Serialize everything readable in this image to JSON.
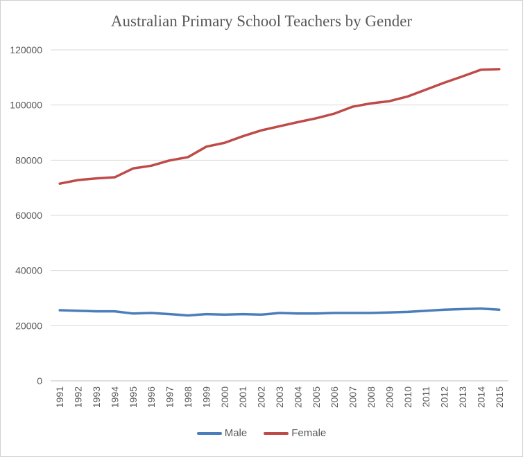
{
  "chart_data": {
    "type": "line",
    "title": "Australian Primary School Teachers by Gender",
    "xlabel": "",
    "ylabel": "",
    "ylim": [
      0,
      120000
    ],
    "yticks": [
      "0",
      "20000",
      "40000",
      "60000",
      "80000",
      "100000",
      "120000"
    ],
    "x": [
      "1991",
      "1992",
      "1993",
      "1994",
      "1995",
      "1996",
      "1997",
      "1998",
      "1999",
      "2000",
      "2001",
      "2002",
      "2003",
      "2004",
      "2005",
      "2006",
      "2007",
      "2008",
      "2009",
      "2010",
      "2011",
      "2012",
      "2013",
      "2014",
      "2015"
    ],
    "grid": true,
    "legend_position": "bottom",
    "series": [
      {
        "name": "Male",
        "color": "#4a7ebb",
        "values": [
          25600,
          25400,
          25200,
          25200,
          24400,
          24600,
          24200,
          23700,
          24200,
          24000,
          24200,
          24000,
          24600,
          24400,
          24400,
          24600,
          24600,
          24600,
          24800,
          25000,
          25400,
          25800,
          26000,
          26200,
          25800
        ]
      },
      {
        "name": "Female",
        "color": "#be4b48",
        "values": [
          71500,
          72800,
          73400,
          73800,
          77000,
          78000,
          79900,
          81100,
          84900,
          86300,
          88700,
          90800,
          92300,
          93800,
          95200,
          96900,
          99400,
          100600,
          101400,
          103100,
          105600,
          108100,
          110400,
          112800,
          113000
        ]
      }
    ]
  }
}
